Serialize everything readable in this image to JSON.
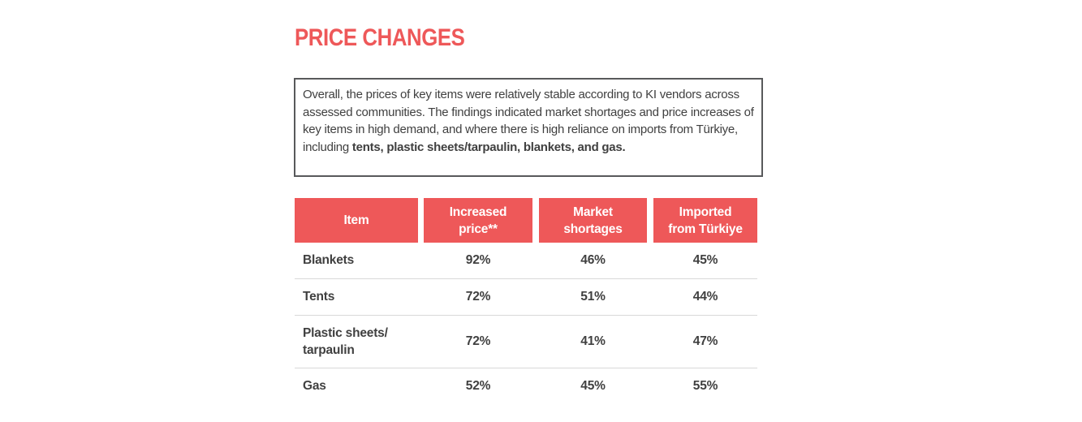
{
  "section": {
    "title": "PRICE CHANGES"
  },
  "summary": {
    "text": "Overall, the prices of key items were relatively stable according to KI vendors across assessed communities. The findings indicated market shortages and price increases of key items in high demand, and where there is high reliance on imports from Türkiye, including ",
    "bold_text": "tents, plastic sheets/tarpaulin, blankets, and gas."
  },
  "table": {
    "headers": [
      "Item",
      "Increased price**",
      "Market shortages",
      "Imported from Türkiye"
    ],
    "rows": [
      {
        "item": "Blankets",
        "increased_price": "92%",
        "market_shortages": "46%",
        "imported": "45%"
      },
      {
        "item": "Tents",
        "increased_price": "72%",
        "market_shortages": "51%",
        "imported": "44%"
      },
      {
        "item": "Plastic sheets/ tarpaulin",
        "increased_price": "72%",
        "market_shortages": "41%",
        "imported": "47%"
      },
      {
        "item": "Gas",
        "increased_price": "52%",
        "market_shortages": "45%",
        "imported": "55%"
      }
    ]
  },
  "colors": {
    "accent": "#ee5859",
    "text": "#404040",
    "border": "#58595b",
    "row_divider": "#d9d9d9"
  }
}
